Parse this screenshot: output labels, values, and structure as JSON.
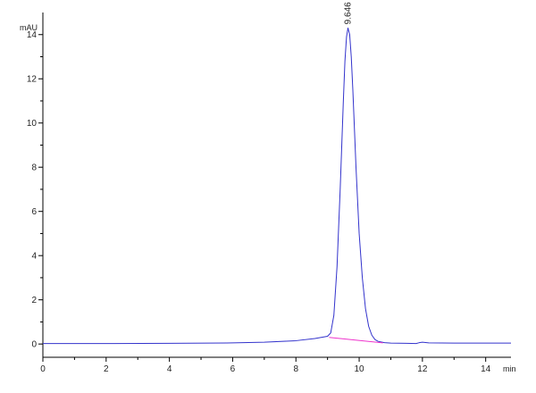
{
  "chart_data": {
    "type": "line",
    "title": "",
    "xlabel": "min",
    "ylabel": "mAU",
    "xlim": [
      0,
      14.8
    ],
    "ylim": [
      -0.6,
      15.0
    ],
    "x_ticks": [
      0,
      2,
      4,
      6,
      8,
      10,
      12,
      14
    ],
    "y_ticks": [
      0,
      2,
      4,
      6,
      8,
      10,
      12,
      14
    ],
    "grid": false,
    "annotations": [
      {
        "text": "9.646",
        "x": 9.646,
        "y": 14.3
      }
    ],
    "series": [
      {
        "color": "#3333cc",
        "x": [
          0,
          2,
          4,
          6,
          7,
          8,
          8.6,
          9.0,
          9.1,
          9.2,
          9.3,
          9.4,
          9.5,
          9.55,
          9.6,
          9.646,
          9.7,
          9.75,
          9.8,
          9.9,
          10.0,
          10.1,
          10.2,
          10.3,
          10.4,
          10.5,
          10.6,
          10.8,
          11.0,
          11.5,
          11.8,
          11.9,
          12.0,
          12.2,
          13,
          14,
          14.8
        ],
        "y": [
          0.02,
          0.02,
          0.03,
          0.05,
          0.08,
          0.15,
          0.25,
          0.35,
          0.5,
          1.3,
          3.5,
          7.0,
          11.0,
          12.8,
          13.9,
          14.3,
          14.0,
          13.0,
          11.5,
          8.0,
          5.0,
          3.0,
          1.6,
          0.8,
          0.4,
          0.2,
          0.12,
          0.06,
          0.04,
          0.03,
          0.02,
          0.06,
          0.08,
          0.05,
          0.04,
          0.04,
          0.04
        ]
      },
      {
        "color": "#ee33cc",
        "x": [
          9.05,
          10.75
        ],
        "y": [
          0.3,
          0.05
        ]
      }
    ]
  }
}
